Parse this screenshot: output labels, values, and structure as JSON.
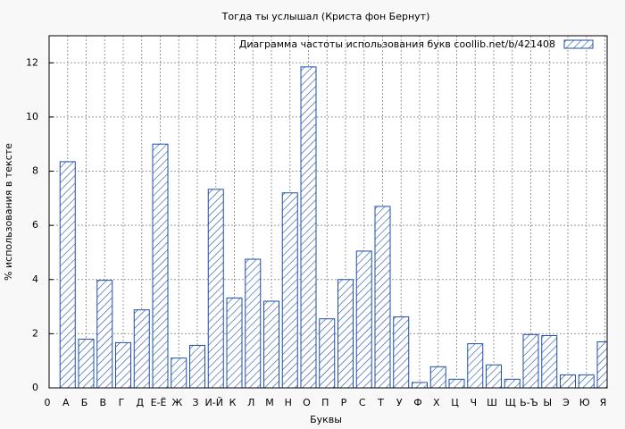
{
  "chart_data": {
    "type": "bar",
    "title": "Тогда ты услышал (Криста фон Бернут)",
    "xlabel": "Буквы",
    "ylabel": "% использования в тексте",
    "categories": [
      "0",
      "А",
      "Б",
      "В",
      "Г",
      "Д",
      "Е-Ё",
      "Ж",
      "З",
      "И-Й",
      "К",
      "Л",
      "М",
      "Н",
      "О",
      "П",
      "Р",
      "С",
      "Т",
      "У",
      "Ф",
      "Х",
      "Ц",
      "Ч",
      "Ш",
      "Щ",
      "Ь-Ъ",
      "Ы",
      "Э",
      "Ю",
      "Я"
    ],
    "series": [
      {
        "name": "Диаграмма частоты использования букв  coollib.net/b/421408",
        "color": "#1f4fa8",
        "values": [
          null,
          8.35,
          1.8,
          3.97,
          1.67,
          2.88,
          9.0,
          1.1,
          1.57,
          7.33,
          3.32,
          4.75,
          3.2,
          7.2,
          11.85,
          2.55,
          4.0,
          5.05,
          6.7,
          2.62,
          0.2,
          0.78,
          0.32,
          1.63,
          0.85,
          0.32,
          1.97,
          1.93,
          0.48,
          0.48,
          1.7
        ]
      }
    ],
    "ylim": [
      0,
      13
    ],
    "yticks": [
      0,
      2,
      4,
      6,
      8,
      10,
      12
    ],
    "grid": true,
    "legend": "top-right"
  }
}
